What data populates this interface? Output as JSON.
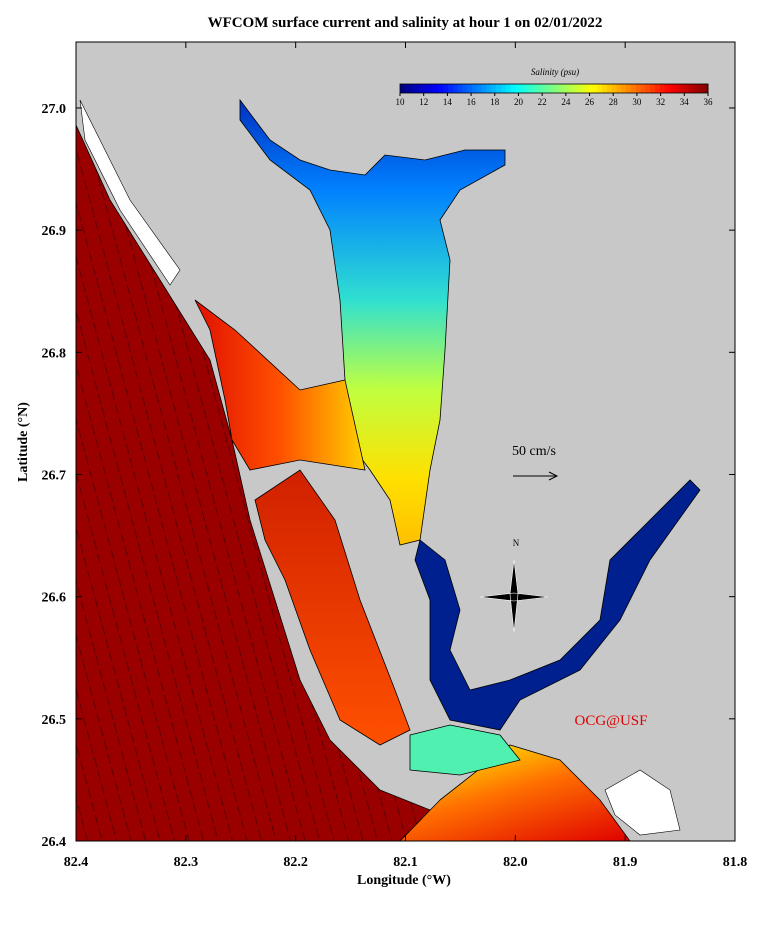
{
  "title": "WFCOM surface current and salinity at hour 1 on 02/01/2022",
  "x_axis": {
    "label": "Longitude (°W)",
    "lim": [
      82.4,
      81.8
    ],
    "ticks": [
      82.4,
      82.3,
      82.2,
      82.1,
      {
        "value": 82,
        "label": "82.0"
      },
      81.9,
      81.8
    ]
  },
  "y_axis": {
    "label": "Latitude (°N)",
    "lim": [
      26.4,
      27.054
    ],
    "ticks": [
      26.4,
      26.5,
      26.6,
      26.7,
      26.8,
      26.9,
      {
        "value": 27,
        "label": "27.0"
      }
    ]
  },
  "colorbar": {
    "label": "Salinity (psu)",
    "ticks": [
      10,
      12,
      14,
      16,
      18,
      20,
      22,
      24,
      26,
      28,
      30,
      32,
      34,
      36
    ]
  },
  "annotations": {
    "scale_arrow": "50 cm/s",
    "north": "N",
    "credit": "OCG@USF"
  }
}
